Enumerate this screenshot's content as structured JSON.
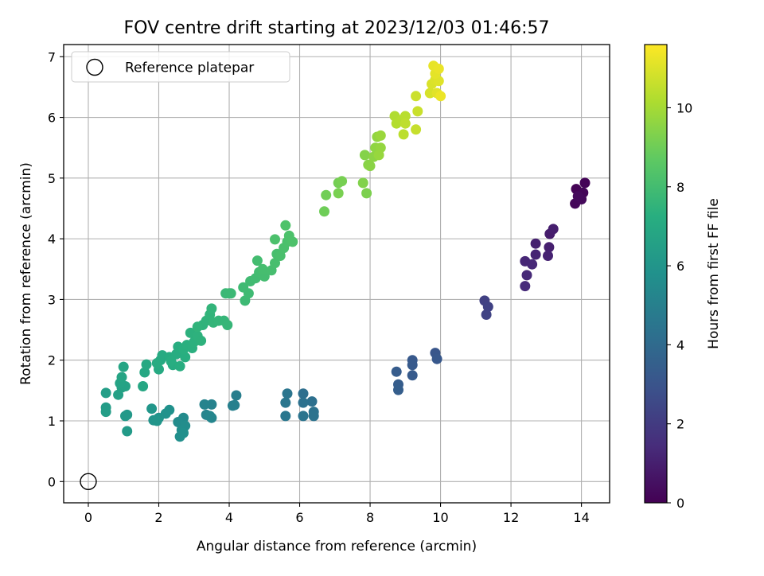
{
  "chart_data": {
    "type": "scatter",
    "title": "FOV centre drift starting at 2023/12/03 01:46:57",
    "xlabel": "Angular distance from reference (arcmin)",
    "ylabel": "Rotation from reference (arcmin)",
    "xlim": [
      -0.7,
      14.8
    ],
    "ylim": [
      -0.35,
      7.2
    ],
    "xticks": [
      0,
      2,
      4,
      6,
      8,
      10,
      12,
      14
    ],
    "yticks": [
      0,
      1,
      2,
      3,
      4,
      5,
      6,
      7
    ],
    "grid": true,
    "legend": {
      "placement": "top-left",
      "entries": [
        "Reference platepar"
      ]
    },
    "reference_point": {
      "x": 0,
      "y": 0,
      "marker": "hollow-circle",
      "label": "Reference platepar"
    },
    "colorbar": {
      "label": "Hours from first FF file",
      "colormap": "viridis",
      "range": [
        0,
        11.6
      ],
      "ticks": [
        0,
        2,
        4,
        6,
        8,
        10
      ]
    },
    "points": [
      {
        "x": 13.85,
        "y": 4.82,
        "c": 0.05
      },
      {
        "x": 14.1,
        "y": 4.92,
        "c": 0.1
      },
      {
        "x": 14.05,
        "y": 4.76,
        "c": 0.15
      },
      {
        "x": 13.82,
        "y": 4.58,
        "c": 0.2
      },
      {
        "x": 14.0,
        "y": 4.65,
        "c": 0.25
      },
      {
        "x": 13.9,
        "y": 4.7,
        "c": 0.3
      },
      {
        "x": 13.1,
        "y": 4.08,
        "c": 0.9
      },
      {
        "x": 13.2,
        "y": 4.16,
        "c": 0.95
      },
      {
        "x": 13.08,
        "y": 3.86,
        "c": 1.0
      },
      {
        "x": 12.7,
        "y": 3.92,
        "c": 1.05
      },
      {
        "x": 13.05,
        "y": 3.72,
        "c": 1.1
      },
      {
        "x": 12.7,
        "y": 3.74,
        "c": 1.15
      },
      {
        "x": 12.4,
        "y": 3.63,
        "c": 1.25
      },
      {
        "x": 12.6,
        "y": 3.58,
        "c": 1.3
      },
      {
        "x": 12.45,
        "y": 3.4,
        "c": 1.35
      },
      {
        "x": 12.4,
        "y": 3.22,
        "c": 1.4
      },
      {
        "x": 11.25,
        "y": 2.98,
        "c": 2.2
      },
      {
        "x": 11.35,
        "y": 2.88,
        "c": 2.25
      },
      {
        "x": 11.3,
        "y": 2.75,
        "c": 2.3
      },
      {
        "x": 9.85,
        "y": 2.12,
        "c": 3.1
      },
      {
        "x": 9.9,
        "y": 2.02,
        "c": 3.15
      },
      {
        "x": 9.2,
        "y": 2.0,
        "c": 3.2
      },
      {
        "x": 9.2,
        "y": 1.92,
        "c": 3.25
      },
      {
        "x": 9.2,
        "y": 1.75,
        "c": 3.3
      },
      {
        "x": 8.75,
        "y": 1.81,
        "c": 3.35
      },
      {
        "x": 8.8,
        "y": 1.6,
        "c": 3.4
      },
      {
        "x": 8.8,
        "y": 1.51,
        "c": 3.45
      },
      {
        "x": 6.1,
        "y": 1.45,
        "c": 4.2
      },
      {
        "x": 6.35,
        "y": 1.32,
        "c": 4.25
      },
      {
        "x": 6.1,
        "y": 1.3,
        "c": 4.3
      },
      {
        "x": 6.4,
        "y": 1.15,
        "c": 4.35
      },
      {
        "x": 6.4,
        "y": 1.08,
        "c": 4.4
      },
      {
        "x": 6.1,
        "y": 1.08,
        "c": 4.45
      },
      {
        "x": 5.65,
        "y": 1.45,
        "c": 4.5
      },
      {
        "x": 5.6,
        "y": 1.3,
        "c": 4.55
      },
      {
        "x": 5.6,
        "y": 1.08,
        "c": 4.6
      },
      {
        "x": 4.2,
        "y": 1.42,
        "c": 4.9
      },
      {
        "x": 4.1,
        "y": 1.25,
        "c": 4.95
      },
      {
        "x": 4.15,
        "y": 1.26,
        "c": 5.0
      },
      {
        "x": 3.5,
        "y": 1.27,
        "c": 5.1
      },
      {
        "x": 3.3,
        "y": 1.27,
        "c": 5.15
      },
      {
        "x": 3.35,
        "y": 1.1,
        "c": 5.2
      },
      {
        "x": 3.5,
        "y": 1.05,
        "c": 5.25
      },
      {
        "x": 3.45,
        "y": 1.08,
        "c": 5.3
      },
      {
        "x": 2.7,
        "y": 1.05,
        "c": 5.5
      },
      {
        "x": 2.55,
        "y": 0.98,
        "c": 5.55
      },
      {
        "x": 2.75,
        "y": 0.92,
        "c": 5.6
      },
      {
        "x": 2.65,
        "y": 0.85,
        "c": 5.65
      },
      {
        "x": 2.6,
        "y": 0.74,
        "c": 5.7
      },
      {
        "x": 2.7,
        "y": 0.8,
        "c": 5.75
      },
      {
        "x": 2.3,
        "y": 1.18,
        "c": 5.8
      },
      {
        "x": 2.2,
        "y": 1.12,
        "c": 5.85
      },
      {
        "x": 2.0,
        "y": 1.05,
        "c": 5.9
      },
      {
        "x": 1.85,
        "y": 1.01,
        "c": 5.95
      },
      {
        "x": 1.95,
        "y": 1.0,
        "c": 6.0
      },
      {
        "x": 1.8,
        "y": 1.2,
        "c": 6.05
      },
      {
        "x": 1.1,
        "y": 1.1,
        "c": 6.15
      },
      {
        "x": 1.05,
        "y": 1.08,
        "c": 6.2
      },
      {
        "x": 1.1,
        "y": 0.83,
        "c": 6.25
      },
      {
        "x": 0.5,
        "y": 1.22,
        "c": 6.35
      },
      {
        "x": 0.5,
        "y": 1.15,
        "c": 6.4
      },
      {
        "x": 0.5,
        "y": 1.46,
        "c": 6.45
      },
      {
        "x": 0.85,
        "y": 1.43,
        "c": 6.55
      },
      {
        "x": 0.95,
        "y": 1.55,
        "c": 6.6
      },
      {
        "x": 1.05,
        "y": 1.57,
        "c": 6.65
      },
      {
        "x": 0.9,
        "y": 1.62,
        "c": 6.7
      },
      {
        "x": 0.95,
        "y": 1.72,
        "c": 6.75
      },
      {
        "x": 1.0,
        "y": 1.89,
        "c": 6.8
      },
      {
        "x": 1.55,
        "y": 1.57,
        "c": 6.85
      },
      {
        "x": 1.6,
        "y": 1.8,
        "c": 6.9
      },
      {
        "x": 1.65,
        "y": 1.93,
        "c": 6.95
      },
      {
        "x": 2.0,
        "y": 1.85,
        "c": 7.0
      },
      {
        "x": 2.05,
        "y": 2.0,
        "c": 7.02
      },
      {
        "x": 2.1,
        "y": 2.08,
        "c": 7.05
      },
      {
        "x": 1.95,
        "y": 1.95,
        "c": 7.08
      },
      {
        "x": 2.3,
        "y": 2.05,
        "c": 7.1
      },
      {
        "x": 2.4,
        "y": 1.92,
        "c": 7.12
      },
      {
        "x": 2.5,
        "y": 2.1,
        "c": 7.15
      },
      {
        "x": 2.35,
        "y": 1.98,
        "c": 7.18
      },
      {
        "x": 2.55,
        "y": 2.22,
        "c": 7.2
      },
      {
        "x": 2.6,
        "y": 1.9,
        "c": 7.22
      },
      {
        "x": 2.75,
        "y": 2.05,
        "c": 7.25
      },
      {
        "x": 2.7,
        "y": 2.18,
        "c": 7.28
      },
      {
        "x": 2.8,
        "y": 2.25,
        "c": 7.3
      },
      {
        "x": 2.95,
        "y": 2.2,
        "c": 7.32
      },
      {
        "x": 3.0,
        "y": 2.3,
        "c": 7.35
      },
      {
        "x": 2.9,
        "y": 2.45,
        "c": 7.38
      },
      {
        "x": 3.1,
        "y": 2.4,
        "c": 7.4
      },
      {
        "x": 3.2,
        "y": 2.32,
        "c": 7.42
      },
      {
        "x": 3.25,
        "y": 2.58,
        "c": 7.45
      },
      {
        "x": 3.35,
        "y": 2.65,
        "c": 7.48
      },
      {
        "x": 3.1,
        "y": 2.55,
        "c": 7.5
      },
      {
        "x": 3.45,
        "y": 2.75,
        "c": 7.52
      },
      {
        "x": 3.5,
        "y": 2.85,
        "c": 7.55
      },
      {
        "x": 3.55,
        "y": 2.62,
        "c": 7.58
      },
      {
        "x": 3.7,
        "y": 2.65,
        "c": 7.6
      },
      {
        "x": 3.85,
        "y": 2.65,
        "c": 7.62
      },
      {
        "x": 3.95,
        "y": 2.58,
        "c": 7.65
      },
      {
        "x": 3.9,
        "y": 3.1,
        "c": 7.75
      },
      {
        "x": 4.0,
        "y": 3.1,
        "c": 7.78
      },
      {
        "x": 4.05,
        "y": 3.1,
        "c": 7.8
      },
      {
        "x": 4.45,
        "y": 2.98,
        "c": 7.85
      },
      {
        "x": 4.55,
        "y": 3.1,
        "c": 7.88
      },
      {
        "x": 4.4,
        "y": 3.2,
        "c": 7.9
      },
      {
        "x": 4.6,
        "y": 3.3,
        "c": 7.92
      },
      {
        "x": 4.75,
        "y": 3.35,
        "c": 7.95
      },
      {
        "x": 4.85,
        "y": 3.45,
        "c": 7.98
      },
      {
        "x": 4.8,
        "y": 3.64,
        "c": 8.0
      },
      {
        "x": 5.0,
        "y": 3.38,
        "c": 8.02
      },
      {
        "x": 4.95,
        "y": 3.5,
        "c": 8.05
      },
      {
        "x": 5.2,
        "y": 3.48,
        "c": 8.08
      },
      {
        "x": 5.3,
        "y": 3.6,
        "c": 8.1
      },
      {
        "x": 5.35,
        "y": 3.75,
        "c": 8.12
      },
      {
        "x": 5.45,
        "y": 3.72,
        "c": 8.15
      },
      {
        "x": 5.55,
        "y": 3.85,
        "c": 8.18
      },
      {
        "x": 5.65,
        "y": 3.95,
        "c": 8.2
      },
      {
        "x": 5.3,
        "y": 3.99,
        "c": 8.22
      },
      {
        "x": 5.7,
        "y": 4.05,
        "c": 8.25
      },
      {
        "x": 5.8,
        "y": 3.95,
        "c": 8.28
      },
      {
        "x": 5.6,
        "y": 4.22,
        "c": 8.3
      },
      {
        "x": 6.7,
        "y": 4.45,
        "c": 9.0
      },
      {
        "x": 6.75,
        "y": 4.72,
        "c": 9.05
      },
      {
        "x": 7.1,
        "y": 4.92,
        "c": 9.1
      },
      {
        "x": 7.2,
        "y": 4.95,
        "c": 9.15
      },
      {
        "x": 7.1,
        "y": 4.75,
        "c": 9.2
      },
      {
        "x": 7.9,
        "y": 4.75,
        "c": 9.25
      },
      {
        "x": 7.8,
        "y": 4.92,
        "c": 9.35
      },
      {
        "x": 7.85,
        "y": 5.38,
        "c": 9.4
      },
      {
        "x": 7.95,
        "y": 5.22,
        "c": 9.45
      },
      {
        "x": 8.0,
        "y": 5.2,
        "c": 9.5
      },
      {
        "x": 8.1,
        "y": 5.35,
        "c": 9.55
      },
      {
        "x": 8.15,
        "y": 5.5,
        "c": 9.6
      },
      {
        "x": 8.2,
        "y": 5.68,
        "c": 9.65
      },
      {
        "x": 8.3,
        "y": 5.5,
        "c": 9.7
      },
      {
        "x": 8.25,
        "y": 5.38,
        "c": 9.75
      },
      {
        "x": 8.3,
        "y": 5.7,
        "c": 9.8
      },
      {
        "x": 8.7,
        "y": 6.02,
        "c": 10.2
      },
      {
        "x": 8.75,
        "y": 5.9,
        "c": 10.25
      },
      {
        "x": 8.9,
        "y": 5.96,
        "c": 10.3
      },
      {
        "x": 9.0,
        "y": 6.02,
        "c": 10.35
      },
      {
        "x": 8.95,
        "y": 5.72,
        "c": 10.4
      },
      {
        "x": 9.0,
        "y": 5.9,
        "c": 10.45
      },
      {
        "x": 9.3,
        "y": 5.8,
        "c": 10.6
      },
      {
        "x": 9.35,
        "y": 6.1,
        "c": 10.65
      },
      {
        "x": 9.3,
        "y": 6.35,
        "c": 10.7
      },
      {
        "x": 9.7,
        "y": 6.4,
        "c": 10.9
      },
      {
        "x": 9.75,
        "y": 6.55,
        "c": 10.95
      },
      {
        "x": 9.85,
        "y": 6.62,
        "c": 11.0
      },
      {
        "x": 9.95,
        "y": 6.6,
        "c": 11.05
      },
      {
        "x": 9.9,
        "y": 6.4,
        "c": 11.1
      },
      {
        "x": 9.85,
        "y": 6.72,
        "c": 11.15
      },
      {
        "x": 9.8,
        "y": 6.85,
        "c": 11.2
      },
      {
        "x": 9.95,
        "y": 6.8,
        "c": 11.25
      },
      {
        "x": 10.0,
        "y": 6.35,
        "c": 11.3
      }
    ]
  }
}
